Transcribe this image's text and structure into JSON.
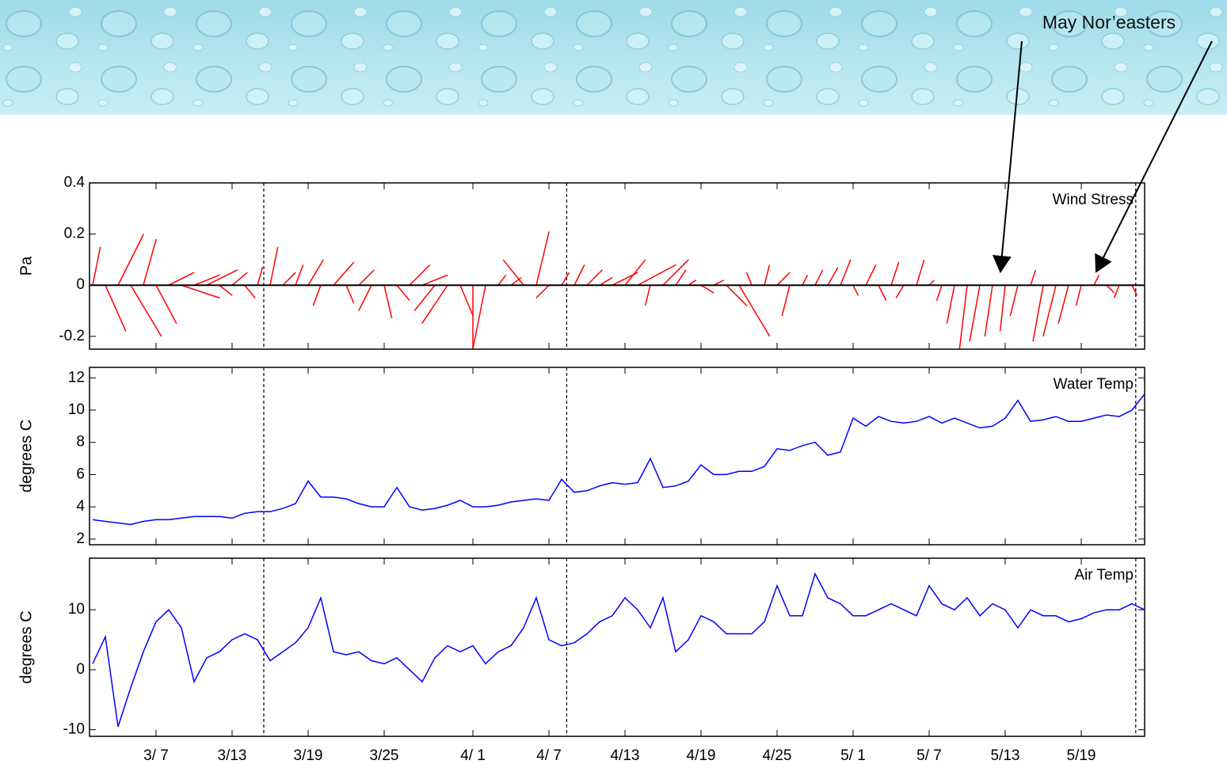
{
  "annotation": "May Nor’easters",
  "chart_data": [
    {
      "type": "stick",
      "title": "Wind Stress",
      "ylabel": "Pa",
      "color": "#ff0000",
      "ylim": [
        -0.25,
        0.4
      ],
      "yticks": [
        -0.2,
        0,
        0.2,
        0.4
      ],
      "x": [
        61,
        62,
        63,
        64,
        65,
        66,
        67,
        68,
        69,
        70,
        71,
        72,
        73,
        74,
        75,
        76,
        77,
        78,
        79,
        80,
        81,
        82,
        83,
        84,
        85,
        86,
        87,
        88,
        89,
        90,
        91,
        92,
        93,
        94,
        95,
        96,
        97,
        98,
        99,
        100,
        101,
        102,
        103,
        104,
        105,
        106,
        107,
        108,
        109,
        110,
        111,
        112,
        113,
        114,
        115,
        116,
        117,
        118,
        119,
        120,
        121,
        122,
        123,
        124,
        125,
        126,
        127,
        128,
        129,
        130,
        131,
        132,
        133,
        134,
        135,
        136,
        137,
        138,
        139,
        140,
        141,
        142,
        143
      ],
      "u": [
        0.03,
        0.08,
        0.1,
        0.12,
        0.05,
        0.08,
        0.1,
        0.15,
        0.1,
        0.12,
        0.05,
        0.06,
        0.04,
        0.02,
        0.03,
        0.05,
        0.03,
        0.06,
        -0.03,
        0.08,
        0.03,
        0.06,
        -0.05,
        0.03,
        0.05,
        0.08,
        0.1,
        -0.08,
        -0.1,
        0.05,
        0,
        -0.05,
        0.03,
        0.04,
        -0.08,
        0.05,
        -0.05,
        0.03,
        0.04,
        0.06,
        0.05,
        0.1,
        0.08,
        0.15,
        -0.02,
        0.1,
        0.04,
        0.03,
        0.05,
        0.04,
        0.08,
        0.12,
        -0.02,
        0.02,
        0.05,
        -0.03,
        0.02,
        0.03,
        0.04,
        0.04,
        0.02,
        0.04,
        0.03,
        0.03,
        -0.03,
        0.03,
        0.02,
        -0.02,
        -0.03,
        -0.03,
        -0.04,
        -0.03,
        -0.02,
        -0.03,
        0.02,
        -0.04,
        -0.05,
        -0.04,
        -0.02,
        0.02,
        0.03,
        -0.02,
        0.02
      ],
      "v": [
        0.15,
        -0.18,
        0.2,
        -0.2,
        0.18,
        -0.15,
        0.05,
        -0.05,
        0.04,
        0.06,
        -0.04,
        0.05,
        -0.05,
        0.07,
        0.15,
        0.05,
        0.08,
        0.1,
        -0.08,
        0.09,
        -0.07,
        0.06,
        -0.1,
        -0.13,
        -0.06,
        0.08,
        0.04,
        -0.1,
        -0.15,
        -0.12,
        -0.25,
        -0.25,
        0.04,
        0.03,
        0.1,
        0.21,
        -0.05,
        0.05,
        0.08,
        0.06,
        0.03,
        0.05,
        0.1,
        0.08,
        -0.08,
        0.1,
        0.06,
        0.02,
        -0.03,
        0.02,
        -0.08,
        -0.2,
        0.05,
        0.08,
        0.05,
        -0.12,
        0.04,
        0.06,
        0.07,
        0.1,
        -0.04,
        0.08,
        -0.06,
        0.09,
        -0.05,
        0.1,
        0.02,
        -0.06,
        -0.15,
        -0.25,
        -0.22,
        -0.2,
        -0.18,
        -0.12,
        0.06,
        -0.22,
        -0.2,
        -0.15,
        -0.08,
        0.04,
        -0.03,
        -0.05,
        -0.04
      ]
    },
    {
      "type": "line",
      "title": "Water Temp",
      "ylabel": "degrees C",
      "color": "#0000ff",
      "ylim": [
        1.65,
        12.65
      ],
      "yticks": [
        2,
        4,
        6,
        8,
        10,
        12
      ],
      "x": [
        61,
        62,
        63,
        64,
        65,
        66,
        67,
        68,
        69,
        70,
        71,
        72,
        73,
        74,
        75,
        76,
        77,
        78,
        79,
        80,
        81,
        82,
        83,
        84,
        85,
        86,
        87,
        88,
        89,
        90,
        91,
        92,
        93,
        94,
        95,
        96,
        97,
        98,
        99,
        100,
        101,
        102,
        103,
        104,
        105,
        106,
        107,
        108,
        109,
        110,
        111,
        112,
        113,
        114,
        115,
        116,
        117,
        118,
        119,
        120,
        121,
        122,
        123,
        124,
        125,
        126,
        127,
        128,
        129,
        130,
        131,
        132,
        133,
        134,
        135,
        136,
        137,
        138,
        139,
        140,
        141,
        142,
        143,
        144
      ],
      "values": [
        3.2,
        3.1,
        3.0,
        2.9,
        3.1,
        3.2,
        3.2,
        3.3,
        3.4,
        3.4,
        3.4,
        3.3,
        3.6,
        3.7,
        3.7,
        3.9,
        4.2,
        5.6,
        4.6,
        4.6,
        4.5,
        4.2,
        4.0,
        4.0,
        5.2,
        4.0,
        3.8,
        3.9,
        4.1,
        4.4,
        4.0,
        4.0,
        4.1,
        4.3,
        4.4,
        4.5,
        4.4,
        5.7,
        4.9,
        5.0,
        5.3,
        5.5,
        5.4,
        5.5,
        7.0,
        5.2,
        5.3,
        5.6,
        6.6,
        6.0,
        6.0,
        6.2,
        6.2,
        6.5,
        7.6,
        7.5,
        7.8,
        8.0,
        7.2,
        7.4,
        9.5,
        9.0,
        9.6,
        9.3,
        9.2,
        9.3,
        9.6,
        9.2,
        9.5,
        9.2,
        8.9,
        9.0,
        9.5,
        10.6,
        9.3,
        9.4,
        9.6,
        9.3,
        9.3,
        9.5,
        9.7,
        9.6,
        10.0,
        11.0
      ]
    },
    {
      "type": "line",
      "title": "Air Temp",
      "ylabel": "degrees C",
      "color": "#0000ff",
      "ylim": [
        -11.1,
        18.6
      ],
      "yticks": [
        -10,
        0,
        10
      ],
      "xlim": [
        60.75,
        144
      ],
      "xticks": [
        {
          "value": 66,
          "label": "3/ 7"
        },
        {
          "value": 72,
          "label": "3/13"
        },
        {
          "value": 78,
          "label": "3/19"
        },
        {
          "value": 84,
          "label": "3/25"
        },
        {
          "value": 91,
          "label": "4/ 1"
        },
        {
          "value": 97,
          "label": "4/ 7"
        },
        {
          "value": 103,
          "label": "4/13"
        },
        {
          "value": 109,
          "label": "4/19"
        },
        {
          "value": 115,
          "label": "4/25"
        },
        {
          "value": 121,
          "label": "5/ 1"
        },
        {
          "value": 127,
          "label": "5/ 7"
        },
        {
          "value": 133,
          "label": "5/13"
        },
        {
          "value": 139,
          "label": "5/19"
        }
      ],
      "markers": [
        74.5,
        98.4,
        143.3
      ],
      "x": [
        61,
        62,
        63,
        64,
        65,
        66,
        67,
        68,
        69,
        70,
        71,
        72,
        73,
        74,
        75,
        76,
        77,
        78,
        79,
        80,
        81,
        82,
        83,
        84,
        85,
        86,
        87,
        88,
        89,
        90,
        91,
        92,
        93,
        94,
        95,
        96,
        97,
        98,
        99,
        100,
        101,
        102,
        103,
        104,
        105,
        106,
        107,
        108,
        109,
        110,
        111,
        112,
        113,
        114,
        115,
        116,
        117,
        118,
        119,
        120,
        121,
        122,
        123,
        124,
        125,
        126,
        127,
        128,
        129,
        130,
        131,
        132,
        133,
        134,
        135,
        136,
        137,
        138,
        139,
        140,
        141,
        142,
        143,
        144
      ],
      "values": [
        1.0,
        5.5,
        -9.5,
        -3,
        3,
        8,
        10,
        7,
        -2,
        2,
        3,
        5,
        6,
        5,
        1.5,
        3,
        4.5,
        7,
        12,
        3,
        2.5,
        3,
        1.5,
        1,
        2,
        0,
        -2,
        2,
        4,
        3,
        4,
        1,
        3,
        4,
        7,
        12,
        5,
        4,
        4.5,
        6,
        8,
        9,
        12,
        10,
        7,
        12,
        3,
        5,
        9,
        8,
        6,
        6,
        6,
        8,
        14,
        9,
        9,
        16,
        12,
        11,
        9,
        9,
        10,
        11,
        10,
        9,
        14,
        11,
        10,
        12,
        9,
        11,
        10,
        7,
        10,
        9,
        9,
        8,
        8.5,
        9.5,
        10,
        10,
        11,
        10
      ]
    }
  ]
}
